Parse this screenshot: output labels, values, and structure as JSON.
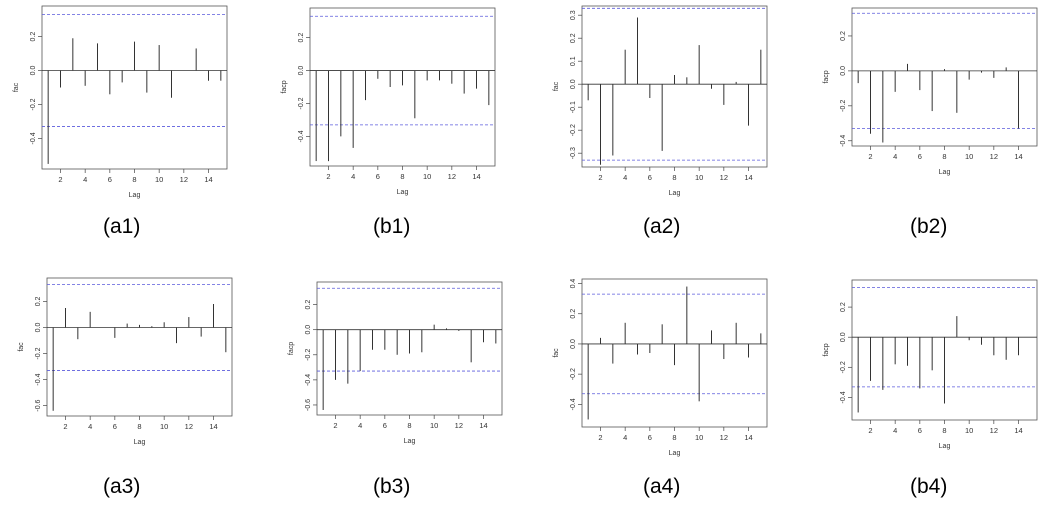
{
  "chart_data": [
    {
      "id": "a1",
      "type": "bar",
      "caption": "(a1)",
      "xlabel": "Lag",
      "ylabel": "fac",
      "xlim": [
        0.5,
        15.5
      ],
      "ylim": [
        -0.58,
        0.38
      ],
      "yticks": [
        -0.4,
        -0.2,
        0.0,
        0.2
      ],
      "ytick_labels": [
        "-0.4",
        "-0.2",
        "0.0",
        "0.2"
      ],
      "xticks": [
        2,
        4,
        6,
        8,
        10,
        12,
        14
      ],
      "xtick_labels": [
        "2",
        "4",
        "6",
        "8",
        "10",
        "12",
        "14"
      ],
      "conf": 0.33,
      "lags": [
        1,
        2,
        3,
        4,
        5,
        6,
        7,
        8,
        9,
        10,
        11,
        12,
        13,
        14,
        15
      ],
      "values": [
        -0.55,
        -0.1,
        0.19,
        -0.09,
        0.16,
        -0.14,
        -0.07,
        0.17,
        -0.13,
        0.15,
        -0.16,
        0.0,
        0.13,
        -0.06,
        -0.06
      ]
    },
    {
      "id": "b1",
      "type": "bar",
      "caption": "(b1)",
      "xlabel": "Lag",
      "ylabel": "facp",
      "xlim": [
        0.5,
        15.5
      ],
      "ylim": [
        -0.58,
        0.38
      ],
      "yticks": [
        -0.4,
        -0.2,
        0.0,
        0.2
      ],
      "ytick_labels": [
        "-0.4",
        "-0.2",
        "0.0",
        "0.2"
      ],
      "xticks": [
        2,
        4,
        6,
        8,
        10,
        12,
        14
      ],
      "xtick_labels": [
        "2",
        "4",
        "6",
        "8",
        "10",
        "12",
        "14"
      ],
      "conf": 0.33,
      "lags": [
        1,
        2,
        3,
        4,
        5,
        6,
        7,
        8,
        9,
        10,
        11,
        12,
        13,
        14,
        15
      ],
      "values": [
        -0.55,
        -0.55,
        -0.4,
        -0.47,
        -0.18,
        -0.05,
        -0.1,
        -0.09,
        -0.29,
        -0.06,
        -0.06,
        -0.08,
        -0.14,
        -0.11,
        -0.21
      ]
    },
    {
      "id": "a2",
      "type": "bar",
      "caption": "(a2)",
      "xlabel": "Lag",
      "ylabel": "fac",
      "xlim": [
        0.5,
        15.5
      ],
      "ylim": [
        -0.36,
        0.34
      ],
      "yticks": [
        -0.3,
        -0.2,
        -0.1,
        0.0,
        0.1,
        0.2,
        0.3
      ],
      "ytick_labels": [
        "-0.3",
        "-0.2",
        "-0.1",
        "0.0",
        "0.1",
        "0.2",
        "0.3"
      ],
      "xticks": [
        2,
        4,
        6,
        8,
        10,
        12,
        14
      ],
      "xtick_labels": [
        "2",
        "4",
        "6",
        "8",
        "10",
        "12",
        "14"
      ],
      "conf": 0.33,
      "lags": [
        1,
        2,
        3,
        4,
        5,
        6,
        7,
        8,
        9,
        10,
        11,
        12,
        13,
        14,
        15
      ],
      "values": [
        -0.07,
        -0.35,
        -0.31,
        0.15,
        0.29,
        -0.06,
        -0.29,
        0.04,
        0.03,
        0.17,
        -0.02,
        -0.09,
        0.01,
        -0.18,
        0.15
      ]
    },
    {
      "id": "b2",
      "type": "bar",
      "caption": "(b2)",
      "xlabel": "Lag",
      "ylabel": "facp",
      "xlim": [
        0.5,
        15.5
      ],
      "ylim": [
        -0.43,
        0.36
      ],
      "yticks": [
        -0.4,
        -0.2,
        0.0,
        0.2
      ],
      "ytick_labels": [
        "-0.4",
        "-0.2",
        "0.0",
        "0.2"
      ],
      "xticks": [
        2,
        4,
        6,
        8,
        10,
        12,
        14
      ],
      "xtick_labels": [
        "2",
        "4",
        "6",
        "8",
        "10",
        "12",
        "14"
      ],
      "conf": 0.33,
      "lags": [
        1,
        2,
        3,
        4,
        5,
        6,
        7,
        8,
        9,
        10,
        11,
        12,
        13,
        14,
        15
      ],
      "values": [
        -0.07,
        -0.36,
        -0.41,
        -0.12,
        0.04,
        -0.11,
        -0.23,
        0.01,
        -0.24,
        -0.05,
        -0.01,
        -0.04,
        0.02,
        -0.33,
        0.0
      ]
    },
    {
      "id": "a3",
      "type": "bar",
      "caption": "(a3)",
      "xlabel": "Lag",
      "ylabel": "fac",
      "xlim": [
        0.5,
        15.5
      ],
      "ylim": [
        -0.68,
        0.38
      ],
      "yticks": [
        -0.6,
        -0.4,
        -0.2,
        0.0,
        0.2
      ],
      "ytick_labels": [
        "-0.6",
        "-0.4",
        "-0.2",
        "0.0",
        "0.2"
      ],
      "xticks": [
        2,
        4,
        6,
        8,
        10,
        12,
        14
      ],
      "xtick_labels": [
        "2",
        "4",
        "6",
        "8",
        "10",
        "12",
        "14"
      ],
      "conf": 0.33,
      "lags": [
        1,
        2,
        3,
        4,
        5,
        6,
        7,
        8,
        9,
        10,
        11,
        12,
        13,
        14,
        15
      ],
      "values": [
        -0.64,
        0.15,
        -0.09,
        0.12,
        0.0,
        -0.08,
        0.03,
        0.02,
        0.01,
        0.04,
        -0.12,
        0.08,
        -0.07,
        0.18,
        -0.19
      ]
    },
    {
      "id": "b3",
      "type": "bar",
      "caption": "(b3)",
      "xlabel": "Lag",
      "ylabel": "facp",
      "xlim": [
        0.5,
        15.5
      ],
      "ylim": [
        -0.68,
        0.38
      ],
      "yticks": [
        -0.6,
        -0.4,
        -0.2,
        0.0,
        0.2
      ],
      "ytick_labels": [
        "-0.6",
        "-0.4",
        "-0.2",
        "0.0",
        "0.2"
      ],
      "xticks": [
        2,
        4,
        6,
        8,
        10,
        12,
        14
      ],
      "xtick_labels": [
        "2",
        "4",
        "6",
        "8",
        "10",
        "12",
        "14"
      ],
      "conf": 0.33,
      "lags": [
        1,
        2,
        3,
        4,
        5,
        6,
        7,
        8,
        9,
        10,
        11,
        12,
        13,
        14,
        15
      ],
      "values": [
        -0.64,
        -0.4,
        -0.43,
        -0.33,
        -0.16,
        -0.16,
        -0.2,
        -0.19,
        -0.18,
        0.04,
        0.01,
        -0.01,
        -0.26,
        -0.1,
        -0.11
      ]
    },
    {
      "id": "a4",
      "type": "bar",
      "caption": "(a4)",
      "xlabel": "Lag",
      "ylabel": "fac",
      "xlim": [
        0.5,
        15.5
      ],
      "ylim": [
        -0.55,
        0.43
      ],
      "yticks": [
        -0.4,
        -0.2,
        0.0,
        0.2,
        0.4
      ],
      "ytick_labels": [
        "-0.4",
        "-0.2",
        "0.0",
        "0.2",
        "0.4"
      ],
      "xticks": [
        2,
        4,
        6,
        8,
        10,
        12,
        14
      ],
      "xtick_labels": [
        "2",
        "4",
        "6",
        "8",
        "10",
        "12",
        "14"
      ],
      "conf": 0.33,
      "lags": [
        1,
        2,
        3,
        4,
        5,
        6,
        7,
        8,
        9,
        10,
        11,
        12,
        13,
        14,
        15
      ],
      "values": [
        -0.5,
        0.04,
        -0.13,
        0.14,
        -0.07,
        -0.06,
        0.13,
        -0.14,
        0.38,
        -0.38,
        0.09,
        -0.1,
        0.14,
        -0.09,
        0.07
      ]
    },
    {
      "id": "b4",
      "type": "bar",
      "caption": "(b4)",
      "xlabel": "Lag",
      "ylabel": "facp",
      "xlim": [
        0.5,
        15.5
      ],
      "ylim": [
        -0.55,
        0.38
      ],
      "yticks": [
        -0.4,
        -0.2,
        0.0,
        0.2
      ],
      "ytick_labels": [
        "-0.4",
        "-0.2",
        "0.0",
        "0.2"
      ],
      "xticks": [
        2,
        4,
        6,
        8,
        10,
        12,
        14
      ],
      "xtick_labels": [
        "2",
        "4",
        "6",
        "8",
        "10",
        "12",
        "14"
      ],
      "conf": 0.33,
      "lags": [
        1,
        2,
        3,
        4,
        5,
        6,
        7,
        8,
        9,
        10,
        11,
        12,
        13,
        14,
        15
      ],
      "values": [
        -0.5,
        -0.29,
        -0.35,
        -0.18,
        -0.19,
        -0.34,
        -0.22,
        -0.44,
        0.14,
        -0.02,
        -0.05,
        -0.12,
        -0.15,
        -0.12,
        0.0
      ]
    }
  ]
}
